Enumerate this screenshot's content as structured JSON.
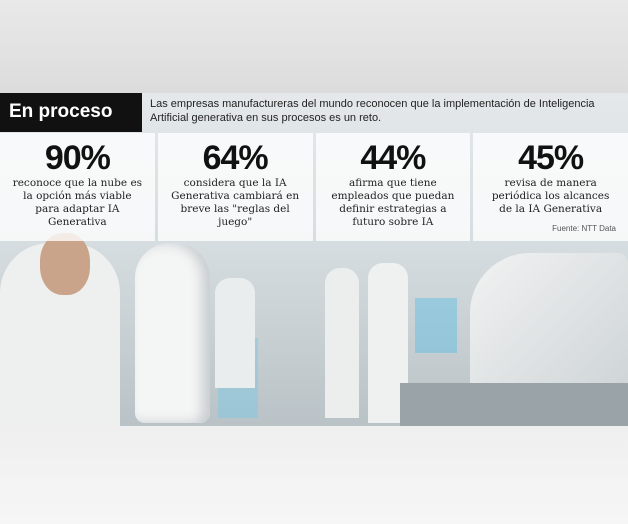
{
  "header": {
    "title": "En proceso",
    "intro": "Las empresas manufactureras del mundo reconocen que la implementación de Inteligencia Artificial generativa en sus procesos es un reto."
  },
  "stats": [
    {
      "value": "90%",
      "description": "reconoce que la nube es la opción más viable para adaptar IA Generativa"
    },
    {
      "value": "64%",
      "description": "considera que la IA Generativa cambiará en breve las \"reglas del juego\""
    },
    {
      "value": "44%",
      "description": "afirma que tiene empleados que puedan definir estrategias a futuro sobre IA"
    },
    {
      "value": "45%",
      "description": "revisa de manera periódica los alcances de la IA Generativa"
    }
  ],
  "source": "Fuente: NTT Data"
}
